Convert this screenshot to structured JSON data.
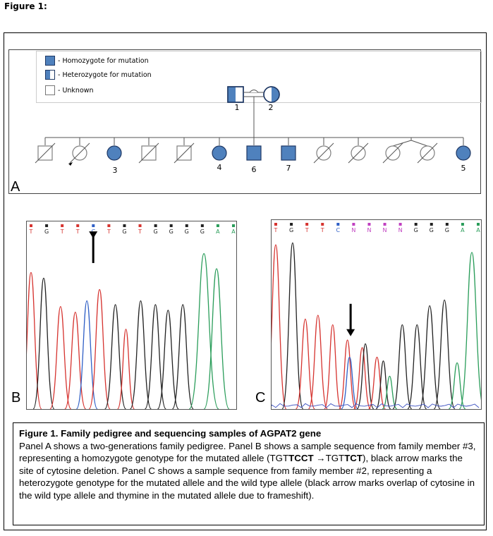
{
  "figure_label": "Figure 1:",
  "legend": {
    "homozygote": "- Homozygote for mutation",
    "heterozygote": "- Heterozygote for mutation",
    "unknown": "- Unknown"
  },
  "panels": {
    "a": "A",
    "b": "B",
    "c": "C"
  },
  "pedigree": {
    "parent_numbers": [
      "1",
      "2"
    ],
    "child_numbers": [
      "3",
      "4",
      "6",
      "7",
      "5"
    ],
    "colors": {
      "affected": "#4f81bd",
      "outline": "#1f3864",
      "unknown_outline": "#7f7f7f"
    }
  },
  "chromatogram_b": {
    "bases": [
      "T",
      "G",
      "T",
      "T",
      "C",
      "T",
      "G",
      "T",
      "G",
      "G",
      "G",
      "G",
      "A",
      "A"
    ]
  },
  "chromatogram_c": {
    "bases": [
      "T",
      "G",
      "T",
      "T",
      "C",
      "N",
      "N",
      "N",
      "N",
      "G",
      "G",
      "G",
      "A",
      "A"
    ]
  },
  "caption": {
    "title": "Figure 1. Family pedigree and sequencing samples of AGPAT2 gene",
    "seg1": "Panel A shows a two-generations family pedigree. Panel B shows a sample sequence from family member #3, representing a homozygote genotype for the mutated allele (TGT",
    "bold1": "TCCT",
    "arrow": " →",
    "seg2": "TGT",
    "bold2": "TCT",
    "seg3": "), black arrow marks the site of cytosine deletion. Panel C shows a sample sequence from family member #2, representing a heterozygote genotype for the mutated allele and the wild type allele (black arrow marks overlap of cytosine in the wild type allele and thymine in the mutated allele due to frameshift)."
  }
}
